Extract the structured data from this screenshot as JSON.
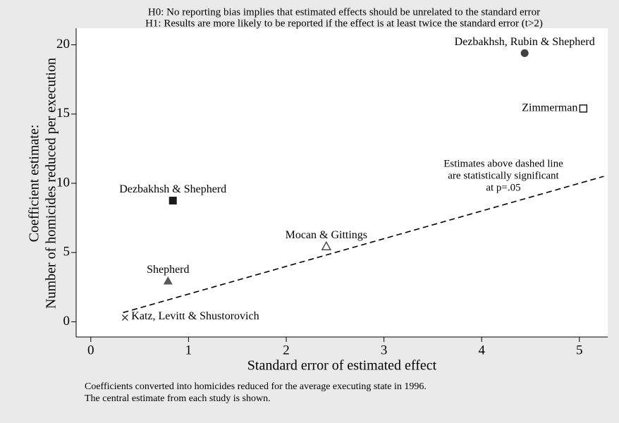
{
  "chart_data": {
    "type": "scatter",
    "title": [
      "H0: No reporting bias implies that estimated effects should be unrelated to the standard error",
      "H1: Results are more likely to be reported if the effect is at least twice the standard error (t>2)"
    ],
    "xlabel": "Standard error of estimated effect",
    "ylabel": [
      "Coefficient estimate:",
      "Number of homicides reduced per execution"
    ],
    "note": [
      "Coefficients converted into homicides reduced for the average executing state in 1996.",
      "The central estimate from each study is shown."
    ],
    "xlim": [
      -0.15,
      5.29
    ],
    "ylim": [
      -1.1,
      21.2
    ],
    "xticks": [
      0,
      1,
      2,
      3,
      4,
      5
    ],
    "yticks": [
      0,
      5,
      10,
      15,
      20
    ],
    "series": [
      {
        "name": "Dezbakhsh, Rubin & Shepherd",
        "marker": "circle",
        "color": "#404040",
        "x": [
          4.44
        ],
        "y": [
          19.4
        ]
      },
      {
        "name": "Zimmerman",
        "marker": "square-hollow",
        "color": "#1a1a1a",
        "x": [
          5.04
        ],
        "y": [
          15.4
        ]
      },
      {
        "name": "Dezbakhsh & Shepherd",
        "marker": "square",
        "color": "#1a1a1a",
        "x": [
          0.84
        ],
        "y": [
          8.75
        ]
      },
      {
        "name": "Mocan & Gittings",
        "marker": "triangle-hollow",
        "color": "#404040",
        "x": [
          2.41
        ],
        "y": [
          5.45
        ]
      },
      {
        "name": "Shepherd",
        "marker": "triangle",
        "color": "#595959",
        "x": [
          0.79
        ],
        "y": [
          2.95
        ]
      },
      {
        "name": "Katz, Levitt & Shustorovich",
        "marker": "x",
        "color": "#404040",
        "x": [
          0.35
        ],
        "y": [
          0.3
        ]
      }
    ],
    "line": {
      "x": [
        0.33,
        5.25
      ],
      "y": [
        0.66,
        10.5
      ],
      "color": "#000000"
    },
    "annotation": [
      "Estimates above dashed line",
      "are statistically significant",
      "at p=.05"
    ]
  }
}
